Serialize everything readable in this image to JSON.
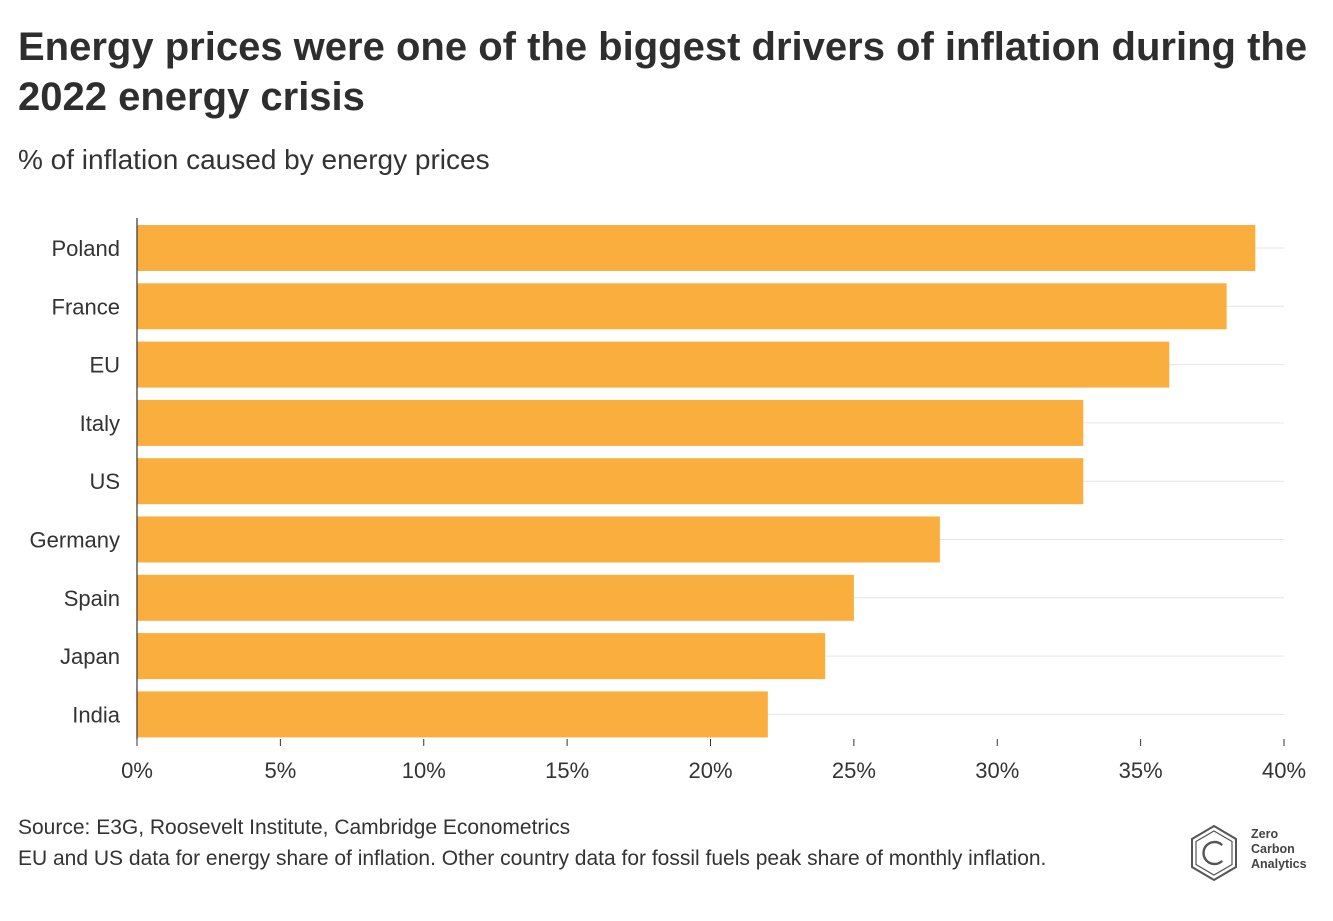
{
  "title": "Energy prices were one of the biggest drivers of inflation during the 2022 energy crisis",
  "subtitle": "% of inflation caused by energy prices",
  "colors": {
    "bar": "#F9AE3D",
    "grid": "#E6E6E6",
    "axis": "#333333",
    "text": "#333333"
  },
  "chart_data": {
    "type": "bar",
    "orientation": "horizontal",
    "title": "Energy prices were one of the biggest drivers of inflation during the 2022 energy crisis",
    "subtitle": "% of inflation caused by energy prices",
    "xlabel": "",
    "ylabel": "",
    "categories": [
      "Poland",
      "France",
      "EU",
      "Italy",
      "US",
      "Germany",
      "Spain",
      "Japan",
      "India"
    ],
    "values": [
      39,
      38,
      36,
      33,
      33,
      28,
      25,
      24,
      22
    ],
    "xlim": [
      0,
      40
    ],
    "x_ticks": [
      0,
      5,
      10,
      15,
      20,
      25,
      30,
      35,
      40
    ],
    "x_tick_labels": [
      "0%",
      "5%",
      "10%",
      "15%",
      "20%",
      "25%",
      "30%",
      "35%",
      "40%"
    ],
    "grid": true,
    "legend": "none"
  },
  "footer": {
    "source": "Source: E3G, Roosevelt Institute, Cambridge Econometrics",
    "note": "EU and US data for energy share of inflation. Other country data for fossil fuels peak share of monthly inflation."
  },
  "logo": {
    "icon": "hexagon-c-icon",
    "line1": "Zero",
    "line2": "Carbon",
    "line3": "Analytics"
  }
}
